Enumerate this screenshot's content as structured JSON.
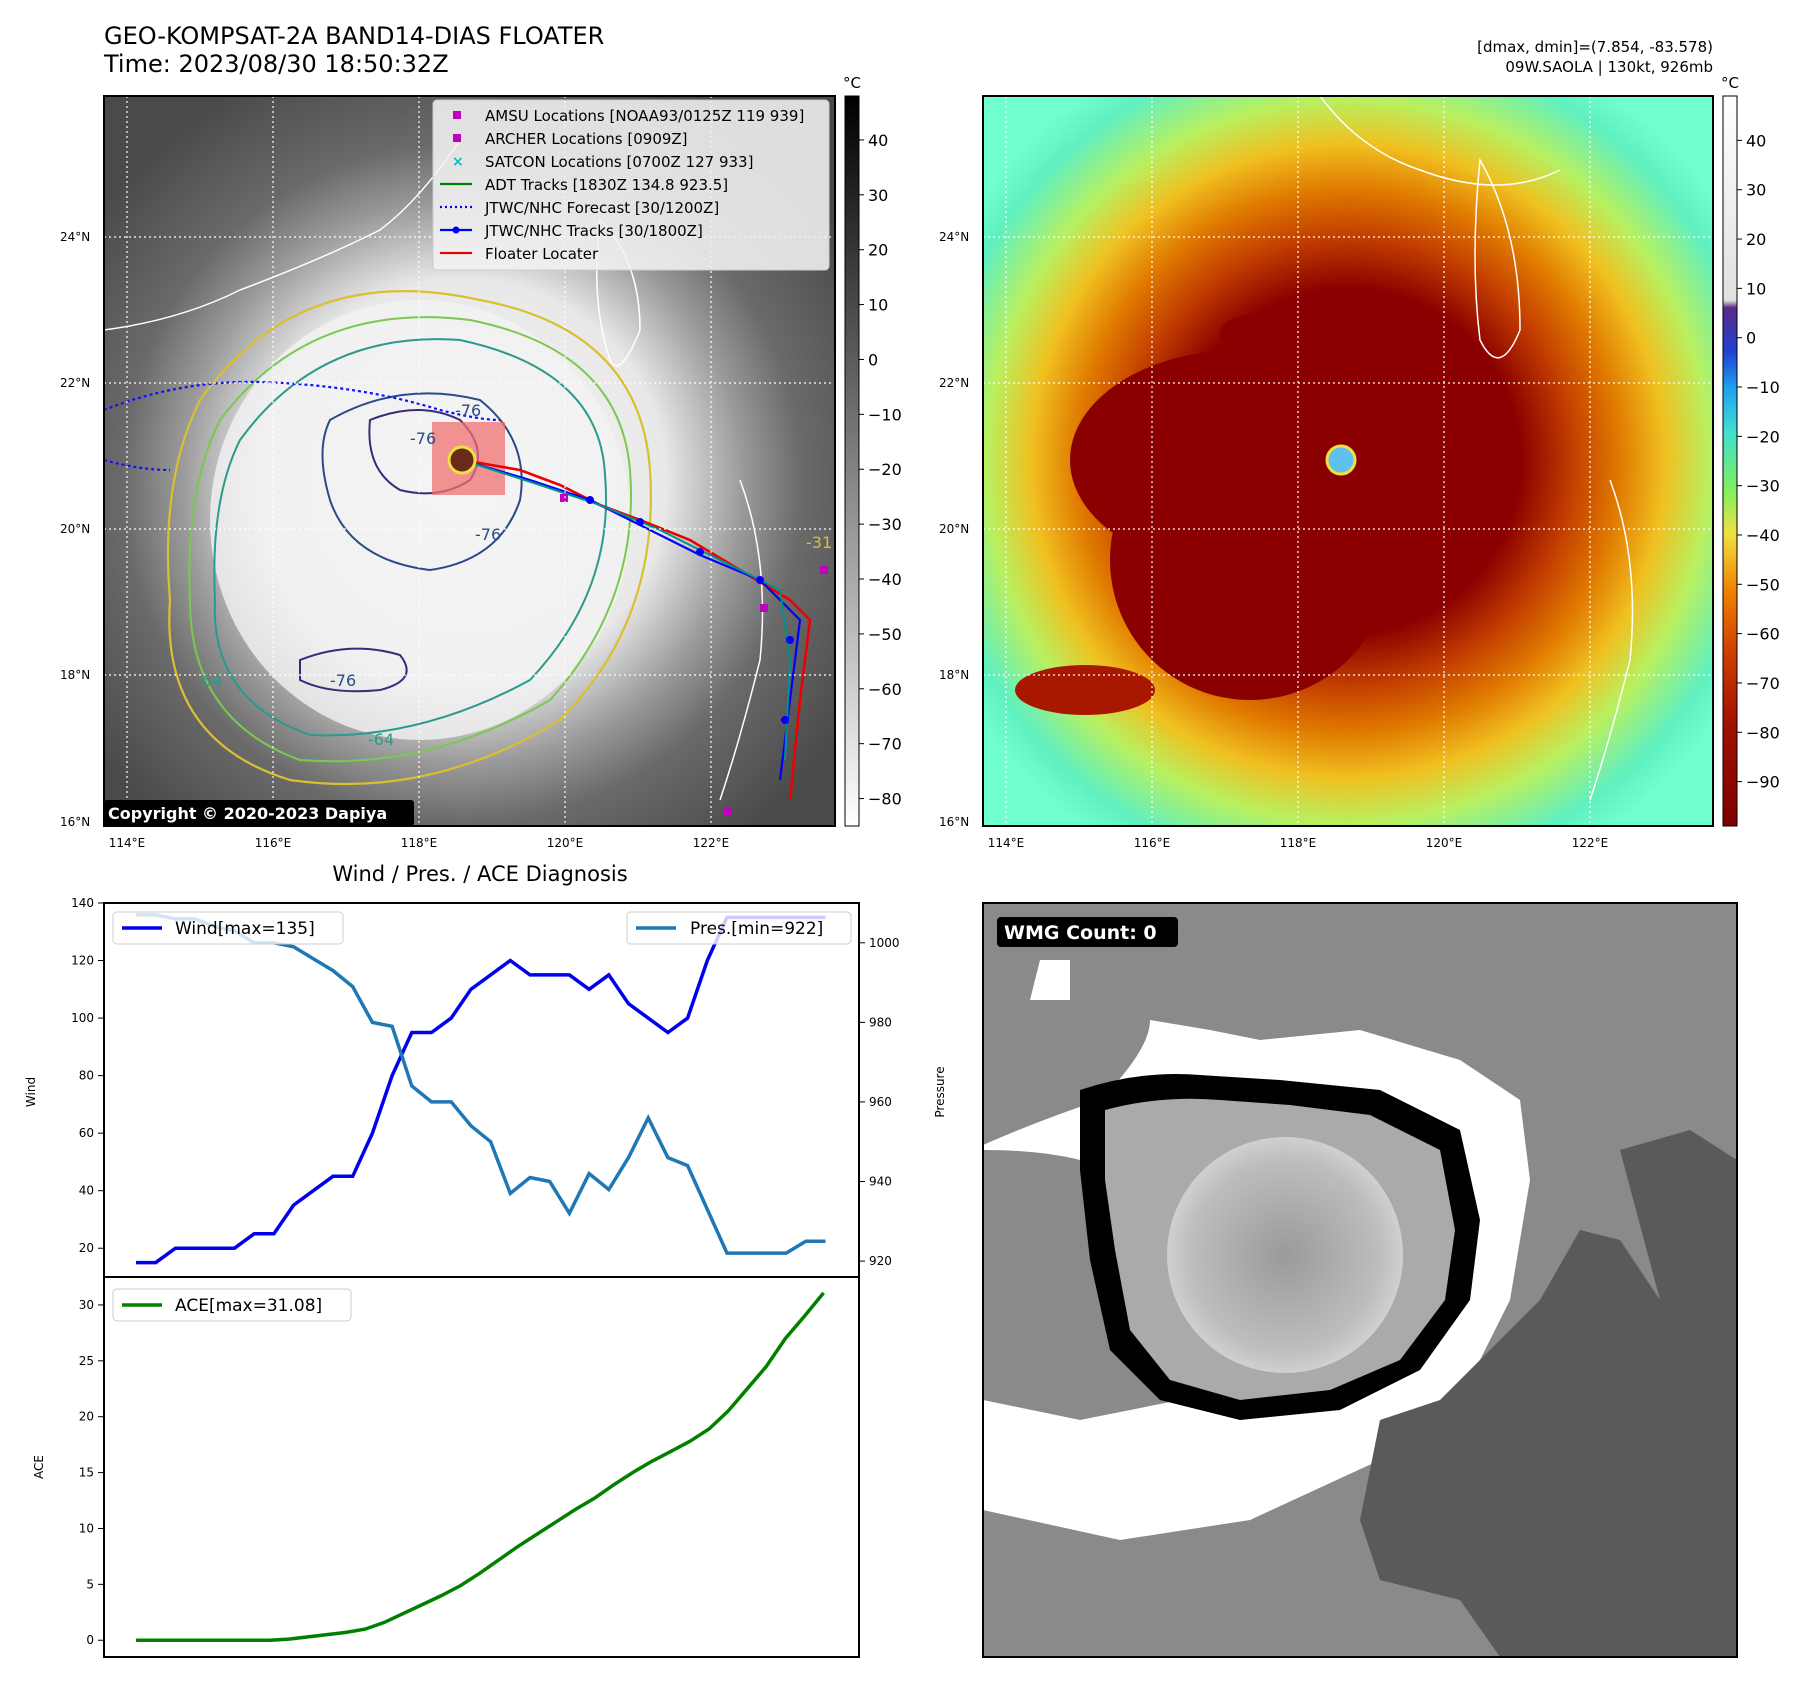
{
  "header": {
    "title": "GEO-KOMPSAT-2A BAND14-DIAS FLOATER",
    "time": "Time: 2023/08/30 18:50:32Z",
    "dmax_dmin": "[dmax, dmin]=(7.854, -83.578)",
    "storm": "09W.SAOLA | 130kt, 926mb"
  },
  "map": {
    "lat_labels": [
      "24°N",
      "22°N",
      "20°N",
      "18°N",
      "16°N"
    ],
    "lon_labels": [
      "114°E",
      "116°E",
      "118°E",
      "120°E",
      "122°E"
    ],
    "copyright": "Copyright © 2020-2023 Dapiya",
    "contour_labels": [
      "-76",
      "-76",
      "-76",
      "-64",
      "-76",
      "-64",
      "-31"
    ],
    "legend": [
      {
        "label": "AMSU Locations [NOAA93/0125Z 119 939]",
        "marker": "square",
        "color": "#c000c0"
      },
      {
        "label": "ARCHER Locations [0909Z]",
        "marker": "square",
        "color": "#c000c0"
      },
      {
        "label": "SATCON Locations [0700Z 127 933]",
        "marker": "x",
        "color": "#00c0c0"
      },
      {
        "label": "ADT Tracks [1830Z 134.8 923.5]",
        "marker": "line",
        "color": "#008000"
      },
      {
        "label": "JTWC/NHC Forecast [30/1200Z]",
        "marker": "dotted",
        "color": "#0000ff"
      },
      {
        "label": "JTWC/NHC Tracks [30/1800Z]",
        "marker": "line-dot",
        "color": "#0000ff"
      },
      {
        "label": "Floater Locater",
        "marker": "line",
        "color": "#ff0000"
      }
    ]
  },
  "colorbars": {
    "unit": "°C",
    "gray_ticks": [
      "40",
      "30",
      "20",
      "10",
      "0",
      "−10",
      "−20",
      "−30",
      "−40",
      "−50",
      "−60",
      "−70",
      "−80"
    ],
    "color_ticks": [
      "40",
      "30",
      "20",
      "10",
      "0",
      "−10",
      "−20",
      "−30",
      "−40",
      "−50",
      "−60",
      "−70",
      "−80",
      "−90"
    ]
  },
  "wmg": {
    "label": "WMG Count: 0"
  },
  "chart_data": [
    {
      "type": "line",
      "title": "Wind / Pres. / ACE Diagnosis",
      "ylabel": "Wind",
      "y2label": "Pressure",
      "ylim": [
        10,
        140
      ],
      "y2lim": [
        916,
        1010
      ],
      "yticks": [
        20,
        40,
        60,
        80,
        100,
        120,
        140
      ],
      "y2ticks": [
        920,
        940,
        960,
        980,
        1000
      ],
      "series": [
        {
          "name": "Wind[max=135]",
          "color": "#0000ee",
          "axis": "left",
          "values": [
            15,
            15,
            20,
            20,
            20,
            20,
            25,
            25,
            35,
            40,
            45,
            45,
            60,
            80,
            95,
            95,
            100,
            110,
            115,
            120,
            115,
            115,
            115,
            110,
            115,
            105,
            100,
            95,
            100,
            120,
            135,
            135,
            135,
            135,
            135,
            135
          ]
        },
        {
          "name": "Pres.[min=922]",
          "color": "#1f77b4",
          "axis": "right",
          "values": [
            1007,
            1007,
            1006,
            1006,
            1004,
            1003,
            1000,
            1000,
            999,
            996,
            993,
            989,
            980,
            979,
            964,
            960,
            960,
            954,
            950,
            937,
            941,
            940,
            932,
            942,
            938,
            946,
            956,
            946,
            944,
            933,
            922,
            922,
            922,
            922,
            925,
            925
          ]
        }
      ]
    },
    {
      "type": "line",
      "ylabel": "ACE",
      "ylim": [
        -1.5,
        32.5
      ],
      "yticks": [
        0,
        5,
        10,
        15,
        20,
        25,
        30
      ],
      "series": [
        {
          "name": "ACE[max=31.08]",
          "color": "#008000",
          "values": [
            0,
            0,
            0,
            0,
            0,
            0,
            0,
            0,
            0.1,
            0.3,
            0.5,
            0.7,
            1.0,
            1.6,
            2.4,
            3.2,
            4.0,
            4.9,
            6.0,
            7.2,
            8.4,
            9.5,
            10.6,
            11.7,
            12.7,
            13.9,
            15.0,
            16.0,
            16.9,
            17.8,
            18.9,
            20.5,
            22.5,
            24.5,
            27.0,
            29.0,
            31.08
          ]
        }
      ]
    }
  ]
}
